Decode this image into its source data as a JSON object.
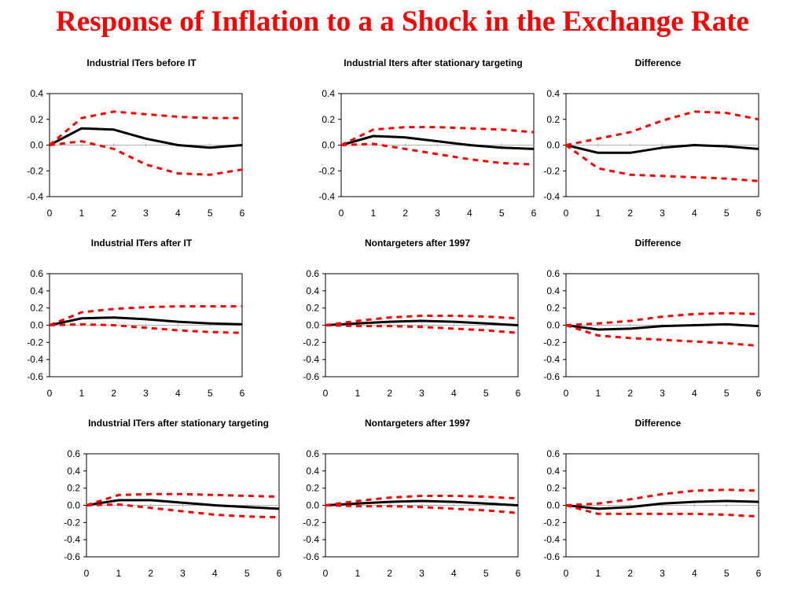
{
  "slide": {
    "title": "Response of Inflation to a a Shock in the Exchange Rate",
    "title_color": "#ff0000"
  },
  "colors": {
    "point_estimate": "#000000",
    "confidence_band": "#ff0000"
  },
  "chart_data": [
    {
      "type": "line",
      "title": "Industrial ITers before IT",
      "xlabel": "",
      "ylabel": "",
      "x": [
        0,
        1,
        2,
        3,
        4,
        5,
        6
      ],
      "xlim": [
        0,
        6
      ],
      "ylim": [
        -0.4,
        0.4
      ],
      "yticks": [
        "0.4",
        "0.2",
        "0.0",
        "-0.2",
        "-0.4"
      ],
      "xticks": [
        "0",
        "1",
        "2",
        "3",
        "4",
        "5",
        "6"
      ],
      "grid": false,
      "series": [
        {
          "role": "estimate",
          "values": [
            0.0,
            0.13,
            0.12,
            0.05,
            0.0,
            -0.02,
            0.0
          ]
        },
        {
          "role": "upper",
          "values": [
            0.0,
            0.21,
            0.26,
            0.24,
            0.22,
            0.21,
            0.21
          ]
        },
        {
          "role": "lower",
          "values": [
            0.0,
            0.03,
            -0.03,
            -0.15,
            -0.22,
            -0.23,
            -0.19
          ]
        }
      ]
    },
    {
      "type": "line",
      "title": "Industrial Iters after stationary targeting",
      "xlabel": "",
      "ylabel": "",
      "x": [
        0,
        1,
        2,
        3,
        4,
        5,
        6
      ],
      "xlim": [
        0,
        6
      ],
      "ylim": [
        -0.4,
        0.4
      ],
      "yticks": [
        "0.4",
        "0.2",
        "0.0",
        "-0.2",
        "-0.4"
      ],
      "xticks": [
        "0",
        "1",
        "2",
        "3",
        "4",
        "5",
        "6"
      ],
      "grid": false,
      "series": [
        {
          "role": "estimate",
          "values": [
            0.0,
            0.07,
            0.06,
            0.03,
            0.0,
            -0.02,
            -0.03
          ]
        },
        {
          "role": "upper",
          "values": [
            0.0,
            0.12,
            0.14,
            0.14,
            0.13,
            0.12,
            0.1
          ]
        },
        {
          "role": "lower",
          "values": [
            0.0,
            0.01,
            -0.03,
            -0.07,
            -0.11,
            -0.14,
            -0.15
          ]
        }
      ]
    },
    {
      "type": "line",
      "title": "Difference",
      "xlabel": "",
      "ylabel": "",
      "x": [
        0,
        1,
        2,
        3,
        4,
        5,
        6
      ],
      "xlim": [
        0,
        6
      ],
      "ylim": [
        -0.4,
        0.4
      ],
      "yticks": [
        "0.4",
        "0.2",
        "0.0",
        "-0.2",
        "-0.4"
      ],
      "xticks": [
        "0",
        "1",
        "2",
        "3",
        "4",
        "5",
        "6"
      ],
      "grid": false,
      "series": [
        {
          "role": "estimate",
          "values": [
            0.0,
            -0.06,
            -0.06,
            -0.02,
            0.0,
            -0.01,
            -0.03
          ]
        },
        {
          "role": "upper",
          "values": [
            0.0,
            0.05,
            0.1,
            0.19,
            0.26,
            0.25,
            0.2
          ]
        },
        {
          "role": "lower",
          "values": [
            0.0,
            -0.18,
            -0.23,
            -0.24,
            -0.25,
            -0.26,
            -0.28
          ]
        }
      ]
    },
    {
      "type": "line",
      "title": "Industrial ITers after IT",
      "xlabel": "",
      "ylabel": "",
      "x": [
        0,
        1,
        2,
        3,
        4,
        5,
        6
      ],
      "xlim": [
        0,
        6
      ],
      "ylim": [
        -0.6,
        0.6
      ],
      "yticks": [
        "0.6",
        "0.4",
        "0.2",
        "0.0",
        "-0.2",
        "-0.4",
        "-0.6"
      ],
      "xticks": [
        "0",
        "1",
        "2",
        "3",
        "4",
        "5",
        "6"
      ],
      "grid": false,
      "series": [
        {
          "role": "estimate",
          "values": [
            0.0,
            0.08,
            0.09,
            0.07,
            0.04,
            0.02,
            0.01
          ]
        },
        {
          "role": "upper",
          "values": [
            0.0,
            0.15,
            0.19,
            0.21,
            0.22,
            0.22,
            0.22
          ]
        },
        {
          "role": "lower",
          "values": [
            0.0,
            0.01,
            0.0,
            -0.03,
            -0.06,
            -0.08,
            -0.09
          ]
        }
      ]
    },
    {
      "type": "line",
      "title": "Nontargeters after 1997",
      "xlabel": "",
      "ylabel": "",
      "x": [
        0,
        1,
        2,
        3,
        4,
        5,
        6
      ],
      "xlim": [
        0,
        6
      ],
      "ylim": [
        -0.6,
        0.6
      ],
      "yticks": [
        "0.6",
        "0.4",
        "0.2",
        "0.0",
        "-0.2",
        "-0.4",
        "-0.6"
      ],
      "xticks": [
        "0",
        "1",
        "2",
        "3",
        "4",
        "5",
        "6"
      ],
      "grid": false,
      "series": [
        {
          "role": "estimate",
          "values": [
            0.0,
            0.02,
            0.04,
            0.05,
            0.04,
            0.02,
            0.0
          ]
        },
        {
          "role": "upper",
          "values": [
            0.0,
            0.05,
            0.09,
            0.11,
            0.11,
            0.1,
            0.08
          ]
        },
        {
          "role": "lower",
          "values": [
            0.0,
            -0.01,
            -0.01,
            -0.02,
            -0.04,
            -0.06,
            -0.09
          ]
        }
      ]
    },
    {
      "type": "line",
      "title": "Difference",
      "xlabel": "",
      "ylabel": "",
      "x": [
        0,
        1,
        2,
        3,
        4,
        5,
        6
      ],
      "xlim": [
        0,
        6
      ],
      "ylim": [
        -0.6,
        0.6
      ],
      "yticks": [
        "0.6",
        "0.4",
        "0.2",
        "0.0",
        "-0.2",
        "-0.4",
        "-0.6"
      ],
      "xticks": [
        "0",
        "1",
        "2",
        "3",
        "4",
        "5",
        "6"
      ],
      "grid": false,
      "series": [
        {
          "role": "estimate",
          "values": [
            0.0,
            -0.05,
            -0.04,
            -0.01,
            0.0,
            0.01,
            -0.01
          ]
        },
        {
          "role": "upper",
          "values": [
            0.0,
            0.02,
            0.05,
            0.1,
            0.13,
            0.14,
            0.13
          ]
        },
        {
          "role": "lower",
          "values": [
            0.0,
            -0.12,
            -0.15,
            -0.17,
            -0.19,
            -0.21,
            -0.24
          ]
        }
      ]
    },
    {
      "type": "line",
      "title": "Industrial ITers after stationary targeting",
      "xlabel": "",
      "ylabel": "",
      "x": [
        0,
        1,
        2,
        3,
        4,
        5,
        6
      ],
      "xlim": [
        0,
        6
      ],
      "ylim": [
        -0.6,
        0.6
      ],
      "yticks": [
        "0.6",
        "0.4",
        "0.2",
        "0.0",
        "-0.2",
        "-0.4",
        "-0.6"
      ],
      "xticks": [
        "0",
        "1",
        "2",
        "3",
        "4",
        "5",
        "6"
      ],
      "grid": false,
      "series": [
        {
          "role": "estimate",
          "values": [
            0.0,
            0.06,
            0.06,
            0.03,
            0.0,
            -0.02,
            -0.04
          ]
        },
        {
          "role": "upper",
          "values": [
            0.0,
            0.12,
            0.13,
            0.13,
            0.12,
            0.11,
            0.1
          ]
        },
        {
          "role": "lower",
          "values": [
            0.0,
            0.01,
            -0.03,
            -0.07,
            -0.11,
            -0.13,
            -0.14
          ]
        }
      ]
    },
    {
      "type": "line",
      "title": "Nontargeters after 1997",
      "xlabel": "",
      "ylabel": "",
      "x": [
        0,
        1,
        2,
        3,
        4,
        5,
        6
      ],
      "xlim": [
        0,
        6
      ],
      "ylim": [
        -0.6,
        0.6
      ],
      "yticks": [
        "0.6",
        "0.4",
        "0.2",
        "0.0",
        "-0.2",
        "-0.4",
        "-0.6"
      ],
      "xticks": [
        "0",
        "1",
        "2",
        "3",
        "4",
        "5",
        "6"
      ],
      "grid": false,
      "series": [
        {
          "role": "estimate",
          "values": [
            0.0,
            0.02,
            0.04,
            0.05,
            0.04,
            0.02,
            0.0
          ]
        },
        {
          "role": "upper",
          "values": [
            0.0,
            0.05,
            0.09,
            0.11,
            0.11,
            0.1,
            0.08
          ]
        },
        {
          "role": "lower",
          "values": [
            0.0,
            -0.01,
            -0.01,
            -0.02,
            -0.04,
            -0.06,
            -0.09
          ]
        }
      ]
    },
    {
      "type": "line",
      "title": "Difference",
      "xlabel": "",
      "ylabel": "",
      "x": [
        0,
        1,
        2,
        3,
        4,
        5,
        6
      ],
      "xlim": [
        0,
        6
      ],
      "ylim": [
        -0.6,
        0.6
      ],
      "yticks": [
        "0.6",
        "0.4",
        "0.2",
        "0.0",
        "-0.2",
        "-0.4",
        "-0.6"
      ],
      "xticks": [
        "0",
        "1",
        "2",
        "3",
        "4",
        "5",
        "6"
      ],
      "grid": false,
      "series": [
        {
          "role": "estimate",
          "values": [
            0.0,
            -0.04,
            -0.02,
            0.02,
            0.04,
            0.05,
            0.04
          ]
        },
        {
          "role": "upper",
          "values": [
            0.0,
            0.02,
            0.07,
            0.13,
            0.17,
            0.18,
            0.17
          ]
        },
        {
          "role": "lower",
          "values": [
            0.0,
            -0.1,
            -0.1,
            -0.1,
            -0.1,
            -0.11,
            -0.13
          ]
        }
      ]
    }
  ]
}
